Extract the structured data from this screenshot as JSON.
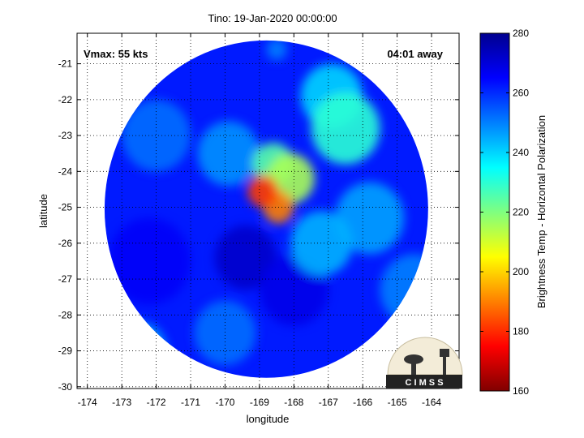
{
  "chart_data": {
    "type": "heatmap",
    "title": "Tino: 19-Jan-2020 00:00:00",
    "xlabel": "longitude",
    "ylabel": "latitude",
    "xlim": [
      -174.3,
      -163.2
    ],
    "ylim": [
      -30.05,
      -20.15
    ],
    "xticks": [
      -174,
      -173,
      -172,
      -171,
      -170,
      -169,
      -168,
      -167,
      -166,
      -165,
      -164
    ],
    "yticks": [
      -21,
      -22,
      -23,
      -24,
      -25,
      -26,
      -27,
      -28,
      -29,
      -30
    ],
    "grid": true,
    "annotations": {
      "vmax": "Vmax: 55 kts",
      "away": "04:01 away"
    },
    "colorbar": {
      "label": "Brightness Temp - Horizontal Polarization",
      "min": 160,
      "max": 280,
      "ticks": [
        160,
        180,
        200,
        220,
        240,
        260,
        280
      ],
      "colormap": "jet"
    },
    "swath": {
      "center": [
        -168.8,
        -25.05
      ],
      "radius_deg": 4.7,
      "background_value": 262
    },
    "features": [
      {
        "lon": -168.9,
        "lat": -24.55,
        "value": 182,
        "spread": 0.45
      },
      {
        "lon": -168.45,
        "lat": -25.0,
        "value": 190,
        "spread": 0.45
      },
      {
        "lon": -168.1,
        "lat": -24.2,
        "value": 215,
        "spread": 0.7
      },
      {
        "lon": -168.6,
        "lat": -23.8,
        "value": 225,
        "spread": 0.6
      },
      {
        "lon": -166.5,
        "lat": -22.8,
        "value": 230,
        "spread": 1.0
      },
      {
        "lon": -166.9,
        "lat": -21.9,
        "value": 240,
        "spread": 0.9
      },
      {
        "lon": -167.2,
        "lat": -26.0,
        "value": 244,
        "spread": 0.9
      },
      {
        "lon": -165.8,
        "lat": -25.3,
        "value": 246,
        "spread": 1.0
      },
      {
        "lon": -169.9,
        "lat": -23.5,
        "value": 248,
        "spread": 0.9
      },
      {
        "lon": -164.5,
        "lat": -27.3,
        "value": 250,
        "spread": 1.0
      },
      {
        "lon": -172.5,
        "lat": -29.0,
        "value": 245,
        "spread": 0.8
      },
      {
        "lon": -170.0,
        "lat": -28.5,
        "value": 252,
        "spread": 0.9
      },
      {
        "lon": -172.0,
        "lat": -23.0,
        "value": 252,
        "spread": 1.0
      },
      {
        "lon": -169.4,
        "lat": -26.4,
        "value": 272,
        "spread": 0.9
      },
      {
        "lon": -168.0,
        "lat": -27.3,
        "value": 268,
        "spread": 1.0
      },
      {
        "lon": -172.2,
        "lat": -26.5,
        "value": 266,
        "spread": 1.2
      },
      {
        "lon": -168.5,
        "lat": -20.6,
        "value": 250,
        "spread": 0.3
      }
    ],
    "logo_text": "C I M S S"
  }
}
